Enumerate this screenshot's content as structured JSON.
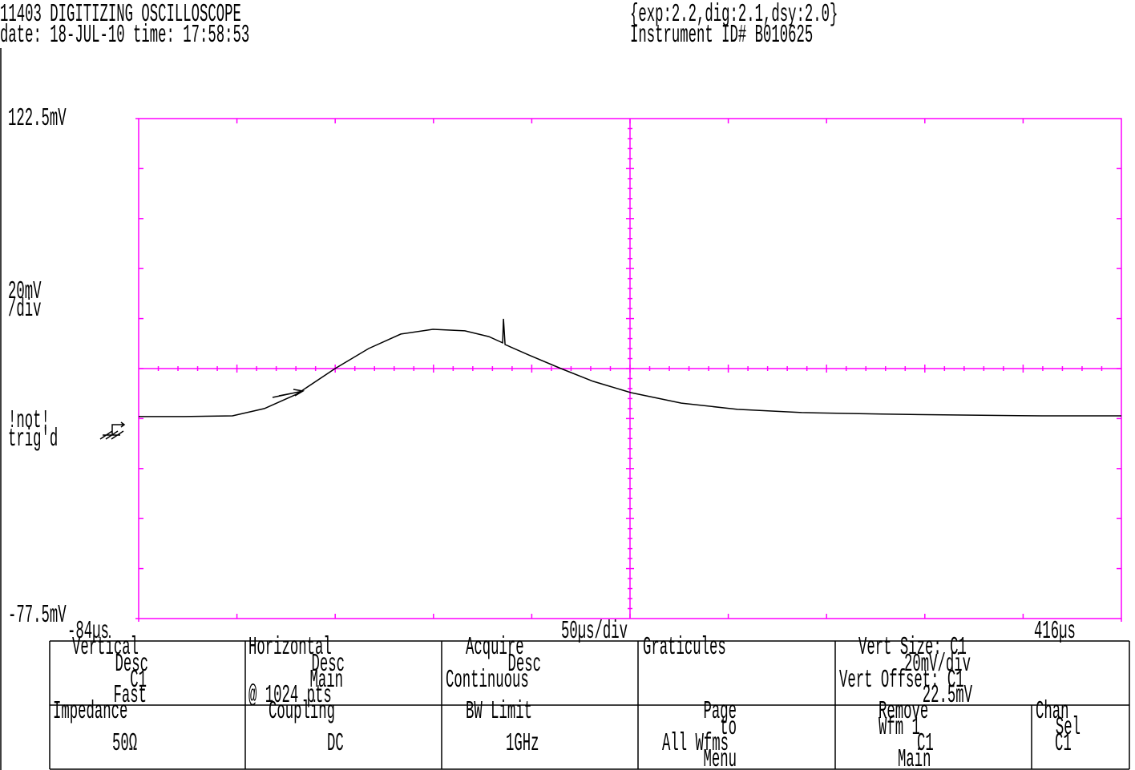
{
  "header": [
    "11403 DIGITIZING OSCILLOSCOPE",
    "date: 18-JUL-10 time: 17:58:53",
    "{exp:2.2,dig:2.1,dsy:2.0}",
    "Instrument ID# B010625"
  ],
  "trigger_status": [
    "!not!",
    "trig'd"
  ],
  "chart_data": {
    "type": "line",
    "x": [
      -84,
      -60.8,
      -36.3,
      -20,
      -3.7,
      15.9,
      33,
      49.4,
      65.7,
      82,
      94.2,
      101.2,
      101.6,
      102.4,
      114.6,
      130.9,
      147.2,
      166.4,
      192.1,
      220.7,
      253.3,
      294.1,
      334.9,
      375.6,
      416
    ],
    "series": [
      {
        "name": "C1",
        "color": "#000000",
        "values": [
          3.3,
          3.3,
          3.6,
          6.5,
          12.2,
          22.5,
          30.5,
          36.3,
          38.2,
          37.6,
          35.3,
          32.8,
          42.4,
          32.1,
          27.9,
          22.5,
          17.4,
          12.9,
          8.7,
          6.2,
          4.9,
          4.3,
          3.9,
          3.6,
          3.6
        ]
      }
    ],
    "xlim": [
      -84,
      416
    ],
    "ylim": [
      -77.5,
      122.5
    ],
    "xticks": [
      {
        "value": -84,
        "label": "-84µs"
      },
      {
        "value": 416,
        "label": "416µs"
      }
    ],
    "yticks": [
      {
        "value": 122.5,
        "label": "122.5mV"
      },
      {
        "value": -77.5,
        "label": "-77.5mV"
      }
    ],
    "xlabel": "50µs/div",
    "ylabel": [
      "20mV",
      "/div"
    ],
    "grid": true,
    "grid_color": "#ff00ff"
  },
  "menu": [
    {
      "lines": [
        "Vertical",
        "Desc",
        "C1",
        "Fast"
      ]
    },
    {
      "lines": [
        "Horizontal",
        "Desc",
        "Main",
        "@ 1024 pts"
      ]
    },
    {
      "lines": [
        "Acquire",
        "Desc",
        "Continuous"
      ]
    },
    {
      "lines": [
        "Graticules"
      ]
    },
    {
      "lines": [
        "Vert Size: C1",
        "20mV/div",
        "Vert Offset: C1",
        "22.5mV"
      ]
    },
    {
      "lines": [
        "Impedance",
        "50Ω"
      ]
    },
    {
      "lines": [
        "Coupling",
        "DC"
      ]
    },
    {
      "lines": [
        "BW Limit",
        "1GHz"
      ]
    },
    {
      "lines": [
        "Page",
        "to",
        "All Wfms",
        "Menu"
      ]
    },
    {
      "lines": [
        "Remove",
        "Wfm 1",
        "C1",
        "Main"
      ]
    },
    {
      "lines": [
        "Chan",
        "Sel",
        "C1"
      ]
    }
  ]
}
